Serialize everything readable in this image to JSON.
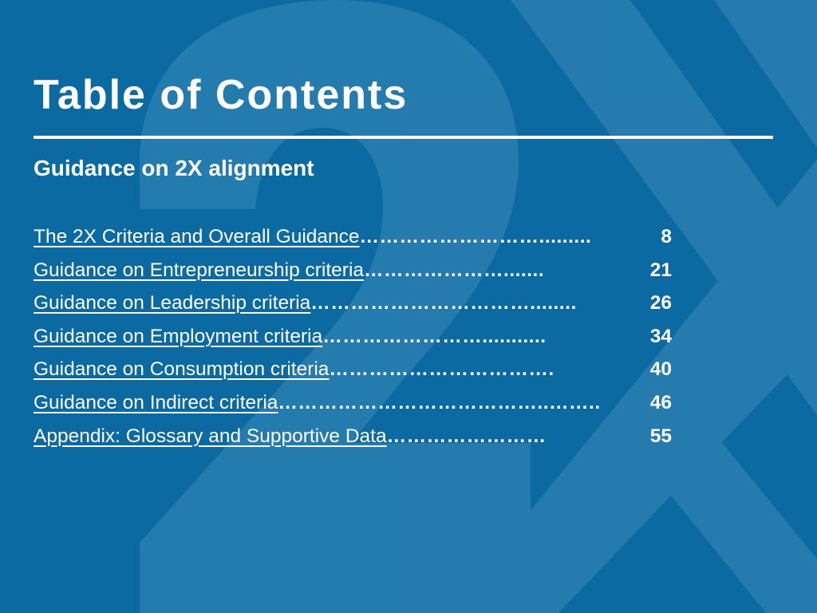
{
  "slide": {
    "title": "Table of Contents",
    "subtitle": "Guidance on 2X alignment",
    "watermark_text": "2X",
    "colors": {
      "background": "#0B6AA2",
      "watermark": "#3B88B8",
      "text": "#FFFFFF"
    }
  },
  "toc": {
    "entries": [
      {
        "label": "The 2X Criteria and Overall Guidance",
        "dots": "……………………….........",
        "page": "8"
      },
      {
        "label": "Guidance on Entrepreneurship criteria",
        "dots": "………………….......",
        "page": "21"
      },
      {
        "label": "Guidance on Leadership criteria",
        "dots": "……………………………........",
        "page": "26"
      },
      {
        "label": "Guidance on Employment criteria",
        "dots": "……………………...........",
        "page": "34"
      },
      {
        "label": "Guidance on Consumption criteria",
        "dots": "…………………………….",
        "page": "40"
      },
      {
        "label": "Guidance on Indirect criteria",
        "dots": "…………………………………..……..",
        "page": "46"
      },
      {
        "label": "Appendix: Glossary and Supportive Data",
        "dots": "……………………",
        "page": "55"
      }
    ]
  }
}
